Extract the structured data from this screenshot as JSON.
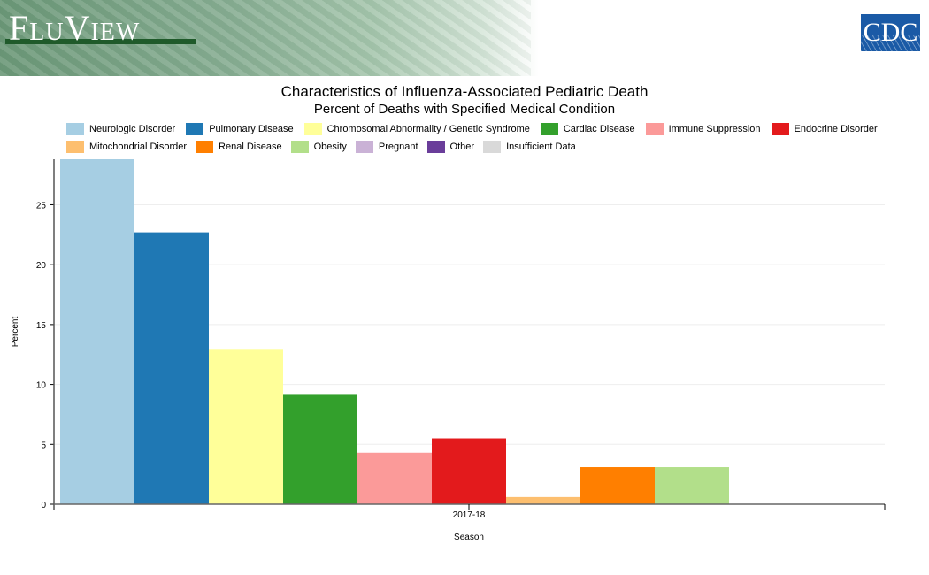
{
  "header": {
    "app_title": "FluView",
    "logo": "CDC"
  },
  "chart_data": {
    "type": "bar",
    "title": "Characteristics of Influenza-Associated Pediatric Death",
    "subtitle": "Percent of Deaths with Specified Medical Condition",
    "xlabel": "Season",
    "ylabel": "Percent",
    "categories": [
      "2017-18"
    ],
    "ylim": [
      0,
      28.8
    ],
    "yticks": [
      "0",
      "5",
      "10",
      "15",
      "20",
      "25"
    ],
    "grid": true,
    "legend_position": "top",
    "legend": [
      {
        "name": "Neurologic Disorder",
        "color": "#a6cee3"
      },
      {
        "name": "Pulmonary Disease",
        "color": "#1f78b4"
      },
      {
        "name": "Chromosomal Abnormality / Genetic Syndrome",
        "color": "#ffff99"
      },
      {
        "name": "Cardiac Disease",
        "color": "#33a02c"
      },
      {
        "name": "Immune Suppression",
        "color": "#fb9a99"
      },
      {
        "name": "Endocrine Disorder",
        "color": "#e31a1c"
      },
      {
        "name": "Mitochondrial Disorder",
        "color": "#fdbf6f"
      },
      {
        "name": "Renal Disease",
        "color": "#ff7f00"
      },
      {
        "name": "Obesity",
        "color": "#b2df8a"
      },
      {
        "name": "Pregnant",
        "color": "#cab2d6"
      },
      {
        "name": "Other",
        "color": "#6a3d9a"
      },
      {
        "name": "Insufficient Data",
        "color": "#d9d9d9"
      }
    ],
    "series": [
      {
        "name": "Neurologic Disorder",
        "values": [
          28.8
        ]
      },
      {
        "name": "Pulmonary Disease",
        "values": [
          22.7
        ]
      },
      {
        "name": "Chromosomal Abnormality / Genetic Syndrome",
        "values": [
          12.9
        ]
      },
      {
        "name": "Cardiac Disease",
        "values": [
          9.2
        ]
      },
      {
        "name": "Immune Suppression",
        "values": [
          4.3
        ]
      },
      {
        "name": "Endocrine Disorder",
        "values": [
          5.5
        ]
      },
      {
        "name": "Mitochondrial Disorder",
        "values": [
          0.6
        ]
      },
      {
        "name": "Renal Disease",
        "values": [
          3.1
        ]
      },
      {
        "name": "Obesity",
        "values": [
          3.1
        ]
      },
      {
        "name": "Pregnant",
        "values": [
          0
        ]
      },
      {
        "name": "Other",
        "values": [
          0
        ]
      }
    ]
  }
}
